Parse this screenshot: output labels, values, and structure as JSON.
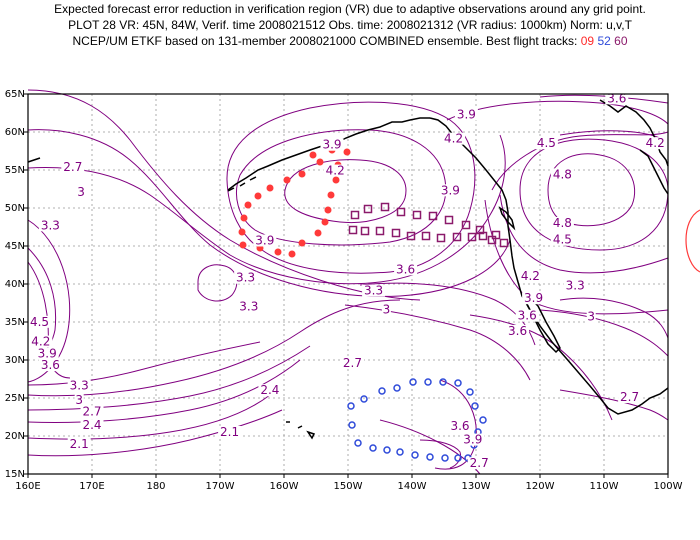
{
  "header": {
    "line1": "Expected forecast error reduction in verification region (VR) due to adaptive observations around any grid point.",
    "line2": "PLOT 28 VR: 45N, 84W, Verif. time 2008021512 Obs. time: 2008021312 (VR radius: 1000km) Norm: u,v,T",
    "line3_prefix": "NCEP/UM ETKF based on 131-member 2008021000 COMBINED ensemble.  Best flight tracks:",
    "flights": [
      "09",
      "52",
      "60"
    ]
  },
  "map": {
    "lon_range": [
      160,
      260
    ],
    "lat_range": [
      15,
      65
    ],
    "lat_labels": [
      "65N",
      "60N",
      "55N",
      "50N",
      "45N",
      "40N",
      "35N",
      "30N",
      "25N",
      "20N",
      "15N"
    ],
    "lon_labels": [
      "160E",
      "170E",
      "180",
      "170W",
      "160W",
      "150W",
      "140W",
      "130W",
      "120W",
      "110W",
      "100W"
    ],
    "colors": {
      "contour": "#800080",
      "track_09": "#ff3a3a",
      "track_52": "#2e4ad9",
      "track_60": "#8b1a6b"
    },
    "contour_labels": [
      {
        "text": "3.6",
        "lon": 252,
        "lat": 63.9
      },
      {
        "text": "3.9",
        "lon": 228.5,
        "lat": 61.8
      },
      {
        "text": "4.2",
        "lon": 226.5,
        "lat": 58.6
      },
      {
        "text": "4.5",
        "lon": 241,
        "lat": 58.0
      },
      {
        "text": "4.2",
        "lon": 258,
        "lat": 58.0
      },
      {
        "text": "4.8",
        "lon": 243.5,
        "lat": 53.9
      },
      {
        "text": "4.8",
        "lon": 243.5,
        "lat": 47.5
      },
      {
        "text": "4.5",
        "lon": 243.5,
        "lat": 45.3
      },
      {
        "text": "3.9",
        "lon": 207.5,
        "lat": 57.8
      },
      {
        "text": "4.2",
        "lon": 208,
        "lat": 54.4
      },
      {
        "text": "3.9",
        "lon": 226,
        "lat": 51.8
      },
      {
        "text": "3.9",
        "lon": 197,
        "lat": 45.2
      },
      {
        "text": "3.6",
        "lon": 219,
        "lat": 41.4
      },
      {
        "text": "2.7",
        "lon": 167,
        "lat": 54.9
      },
      {
        "text": "3",
        "lon": 168.3,
        "lat": 51.6
      },
      {
        "text": "3.3",
        "lon": 163.5,
        "lat": 47.2
      },
      {
        "text": "3.3",
        "lon": 194,
        "lat": 40.3
      },
      {
        "text": "3.3",
        "lon": 194.5,
        "lat": 36.5
      },
      {
        "text": "4.5",
        "lon": 161.8,
        "lat": 34.5
      },
      {
        "text": "4.2",
        "lon": 162,
        "lat": 31.9
      },
      {
        "text": "3.9",
        "lon": 163,
        "lat": 30.3
      },
      {
        "text": "3.6",
        "lon": 163.5,
        "lat": 28.8
      },
      {
        "text": "3.3",
        "lon": 168,
        "lat": 26.1
      },
      {
        "text": "3",
        "lon": 168,
        "lat": 24.2
      },
      {
        "text": "2.7",
        "lon": 170,
        "lat": 22.7
      },
      {
        "text": "2.4",
        "lon": 170,
        "lat": 20.9
      },
      {
        "text": "2.1",
        "lon": 168,
        "lat": 18.4
      },
      {
        "text": "2.1",
        "lon": 191.5,
        "lat": 20.0
      },
      {
        "text": "2.4",
        "lon": 197.8,
        "lat": 25.5
      },
      {
        "text": "2.7",
        "lon": 210.7,
        "lat": 29.1
      },
      {
        "text": "3.3",
        "lon": 214,
        "lat": 38.6
      },
      {
        "text": "3",
        "lon": 216,
        "lat": 36.1
      },
      {
        "text": "3.6",
        "lon": 238,
        "lat": 35.3
      },
      {
        "text": "3.6",
        "lon": 236.5,
        "lat": 33.3
      },
      {
        "text": "4.2",
        "lon": 238.5,
        "lat": 40.5
      },
      {
        "text": "3.9",
        "lon": 239,
        "lat": 37.6
      },
      {
        "text": "3.3",
        "lon": 245.5,
        "lat": 39.3
      },
      {
        "text": "3",
        "lon": 248,
        "lat": 35.2
      },
      {
        "text": "2.7",
        "lon": 254,
        "lat": 24.6
      },
      {
        "text": "3.6",
        "lon": 227.5,
        "lat": 20.8
      },
      {
        "text": "3.9",
        "lon": 229.5,
        "lat": 19.0
      },
      {
        "text": "2.7",
        "lon": 230.5,
        "lat": 15.9
      }
    ]
  }
}
